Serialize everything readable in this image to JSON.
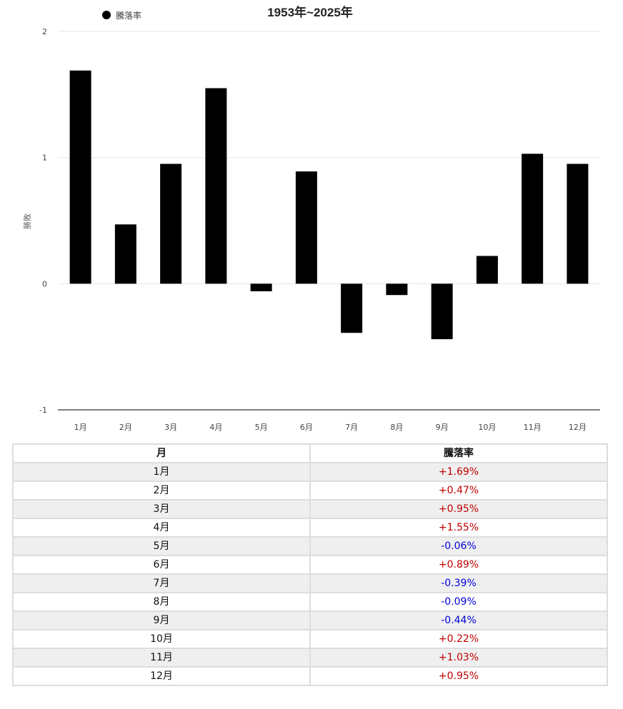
{
  "chart_data": {
    "type": "bar",
    "title": "1953年~2025年",
    "ylabel": "勝敗",
    "xlabel": "",
    "legend": {
      "label": "騰落率",
      "position": "top-left"
    },
    "categories": [
      "1月",
      "2月",
      "3月",
      "4月",
      "5月",
      "6月",
      "7月",
      "8月",
      "9月",
      "10月",
      "11月",
      "12月"
    ],
    "series": [
      {
        "name": "騰落率",
        "values": [
          1.69,
          0.47,
          0.95,
          1.55,
          -0.06,
          0.89,
          -0.39,
          -0.09,
          -0.44,
          0.22,
          1.03,
          0.95
        ],
        "color": "#000000"
      }
    ],
    "ylim": [
      -1,
      2
    ],
    "yticks": [
      2,
      1,
      0,
      -1
    ],
    "grid": true
  },
  "table": {
    "headers": {
      "month": "月",
      "change": "騰落率"
    },
    "rows": [
      {
        "month": "1月",
        "change": "+1.69%"
      },
      {
        "month": "2月",
        "change": "+0.47%"
      },
      {
        "month": "3月",
        "change": "+0.95%"
      },
      {
        "month": "4月",
        "change": "+1.55%"
      },
      {
        "month": "5月",
        "change": "-0.06%"
      },
      {
        "month": "6月",
        "change": "+0.89%"
      },
      {
        "month": "7月",
        "change": "-0.39%"
      },
      {
        "month": "8月",
        "change": "-0.09%"
      },
      {
        "month": "9月",
        "change": "-0.44%"
      },
      {
        "month": "10月",
        "change": "+0.22%"
      },
      {
        "month": "11月",
        "change": "+1.03%"
      },
      {
        "month": "12月",
        "change": "+0.95%"
      }
    ]
  },
  "colors": {
    "positive": "#c00000",
    "negative": "#0000dd",
    "bar": "#000000",
    "grid": "#e6e6e6",
    "baseline": "#333333"
  }
}
